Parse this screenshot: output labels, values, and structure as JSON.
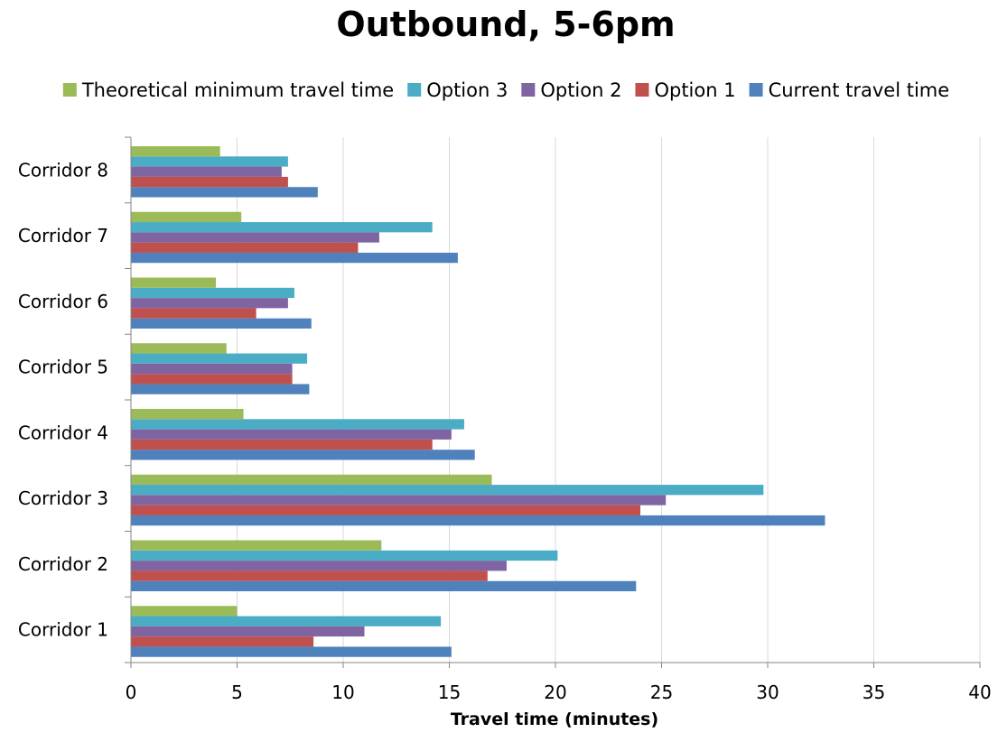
{
  "chart_data": {
    "type": "bar",
    "orientation": "horizontal",
    "title": "Outbound, 5-6pm",
    "xlabel": "Travel time (minutes)",
    "ylabel": "",
    "xlim": [
      0,
      40
    ],
    "xticks": [
      0,
      5,
      10,
      15,
      20,
      25,
      30,
      35,
      40
    ],
    "grid": true,
    "legend_position": "top",
    "categories": [
      "Corridor 1",
      "Corridor 2",
      "Corridor 3",
      "Corridor 4",
      "Corridor 5",
      "Corridor 6",
      "Corridor 7",
      "Corridor 8"
    ],
    "series": [
      {
        "name": "Current travel time",
        "color": "#4f81bd",
        "values": [
          15.1,
          23.8,
          32.7,
          16.2,
          8.4,
          8.5,
          15.4,
          8.8
        ]
      },
      {
        "name": "Option 1",
        "color": "#c0504d",
        "values": [
          8.6,
          16.8,
          24.0,
          14.2,
          7.6,
          5.9,
          10.7,
          7.4
        ]
      },
      {
        "name": "Option 2",
        "color": "#8064a2",
        "values": [
          11.0,
          17.7,
          25.2,
          15.1,
          7.6,
          7.4,
          11.7,
          7.1
        ]
      },
      {
        "name": "Option 3",
        "color": "#4bacc6",
        "values": [
          14.6,
          20.1,
          29.8,
          15.7,
          8.3,
          7.7,
          14.2,
          7.4
        ]
      },
      {
        "name": "Theoretical minimum travel time",
        "color": "#9bbb59",
        "values": [
          5.0,
          11.8,
          17.0,
          5.3,
          4.5,
          4.0,
          5.2,
          4.2
        ]
      }
    ],
    "legend_order": [
      "Theoretical minimum travel time",
      "Option 3",
      "Option 2",
      "Option 1",
      "Current travel time"
    ]
  }
}
